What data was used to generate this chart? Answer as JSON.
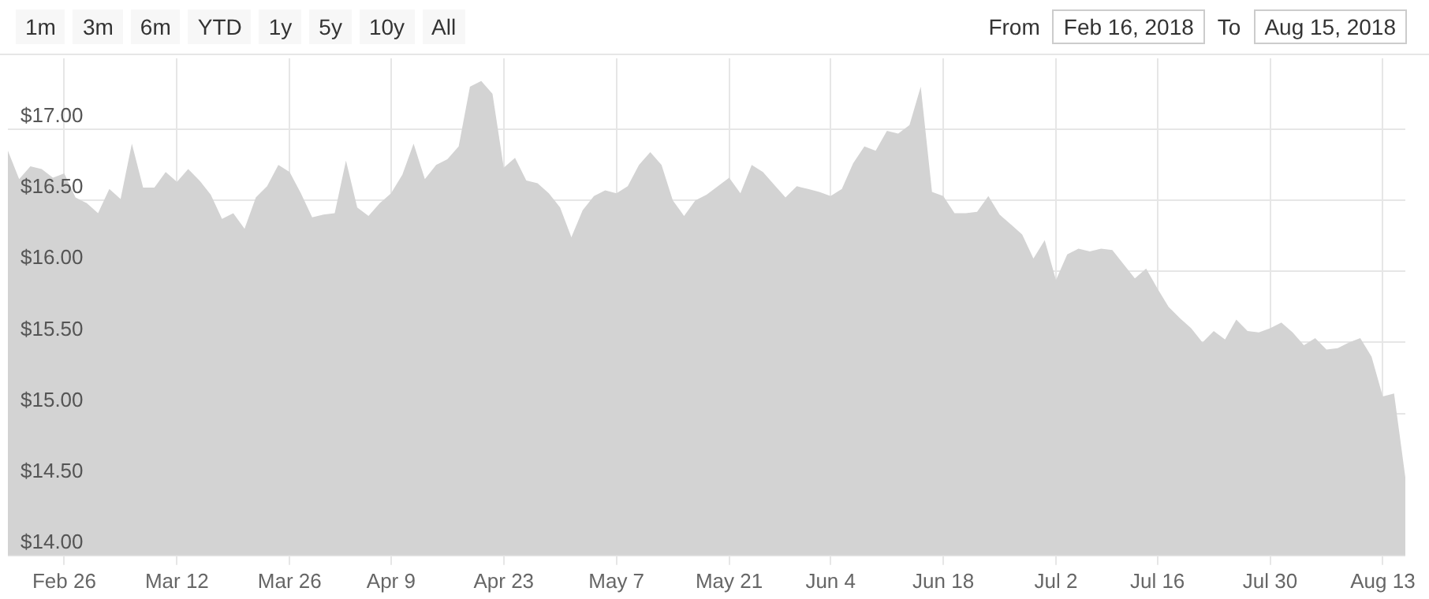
{
  "chart_data": {
    "type": "area",
    "annotations": [
      "1m",
      "3m",
      "6m",
      "YTD",
      "1y",
      "5y",
      "10y",
      "All",
      "From",
      "Feb 16, 2018",
      "To",
      "Aug 15, 2018"
    ],
    "categories": [
      null,
      null,
      null,
      null,
      null,
      "Feb 26",
      null,
      null,
      null,
      null,
      null,
      null,
      null,
      null,
      null,
      "Mar 12",
      null,
      null,
      null,
      null,
      null,
      null,
      null,
      null,
      null,
      "Mar 26",
      null,
      null,
      null,
      null,
      null,
      null,
      null,
      null,
      "Apr 9",
      null,
      null,
      null,
      null,
      null,
      null,
      null,
      null,
      null,
      "Apr 23",
      null,
      null,
      null,
      null,
      null,
      null,
      null,
      null,
      null,
      "May 7",
      null,
      null,
      null,
      null,
      null,
      null,
      null,
      null,
      null,
      "May 21",
      null,
      null,
      null,
      null,
      null,
      null,
      null,
      null,
      "Jun 4",
      null,
      null,
      null,
      null,
      null,
      null,
      null,
      null,
      null,
      "Jun 18",
      null,
      null,
      null,
      null,
      null,
      null,
      null,
      null,
      null,
      "Jul 2",
      null,
      null,
      null,
      null,
      null,
      null,
      null,
      null,
      "Jul 16",
      null,
      null,
      null,
      null,
      null,
      null,
      null,
      null,
      null,
      "Jul 30",
      null,
      null,
      null,
      null,
      null,
      null,
      null,
      null,
      null,
      "Aug 13",
      null,
      null
    ],
    "series": [
      {
        "color": "#d3d3d3",
        "values": [
          16.85,
          16.65,
          16.74,
          16.72,
          16.66,
          16.69,
          16.52,
          16.48,
          16.41,
          16.58,
          16.51,
          16.9,
          16.59,
          16.59,
          16.7,
          16.63,
          16.72,
          16.64,
          16.54,
          16.37,
          16.41,
          16.3,
          16.52,
          16.6,
          16.75,
          16.7,
          16.55,
          16.38,
          16.4,
          16.41,
          16.78,
          16.45,
          16.39,
          16.48,
          16.55,
          16.68,
          16.9,
          16.65,
          16.75,
          16.79,
          16.88,
          17.3,
          17.34,
          17.25,
          16.73,
          16.8,
          16.64,
          16.62,
          16.55,
          16.45,
          16.24,
          16.43,
          16.53,
          16.57,
          16.55,
          16.6,
          16.75,
          16.84,
          16.75,
          16.5,
          16.39,
          16.5,
          16.54,
          16.6,
          16.66,
          16.55,
          16.75,
          16.7,
          16.61,
          16.52,
          16.6,
          16.58,
          16.56,
          16.53,
          16.58,
          16.76,
          16.88,
          16.85,
          16.99,
          16.97,
          17.03,
          17.3,
          16.56,
          16.53,
          16.41,
          16.41,
          16.42,
          16.53,
          16.4,
          16.33,
          16.26,
          16.09,
          16.22,
          15.94,
          16.12,
          16.16,
          16.14,
          16.16,
          16.15,
          16.05,
          15.95,
          16.02,
          15.88,
          15.75,
          15.67,
          15.6,
          15.5,
          15.58,
          15.52,
          15.66,
          15.58,
          15.57,
          15.6,
          15.64,
          15.57,
          15.48,
          15.53,
          15.45,
          15.46,
          15.5,
          15.53,
          15.4,
          15.12,
          15.14,
          14.55
        ]
      }
    ],
    "ylim": [
      14,
      17.5
    ],
    "yticks": [
      {
        "value": 14,
        "label": "$14.00"
      },
      {
        "value": 14.5,
        "label": "$14.50"
      },
      {
        "value": 15,
        "label": "$15.00"
      },
      {
        "value": 15.5,
        "label": "$15.50"
      },
      {
        "value": 16,
        "label": "$16.00"
      },
      {
        "value": 16.5,
        "label": "$16.50"
      },
      {
        "value": 17,
        "label": "$17.00"
      }
    ],
    "grid": true
  }
}
